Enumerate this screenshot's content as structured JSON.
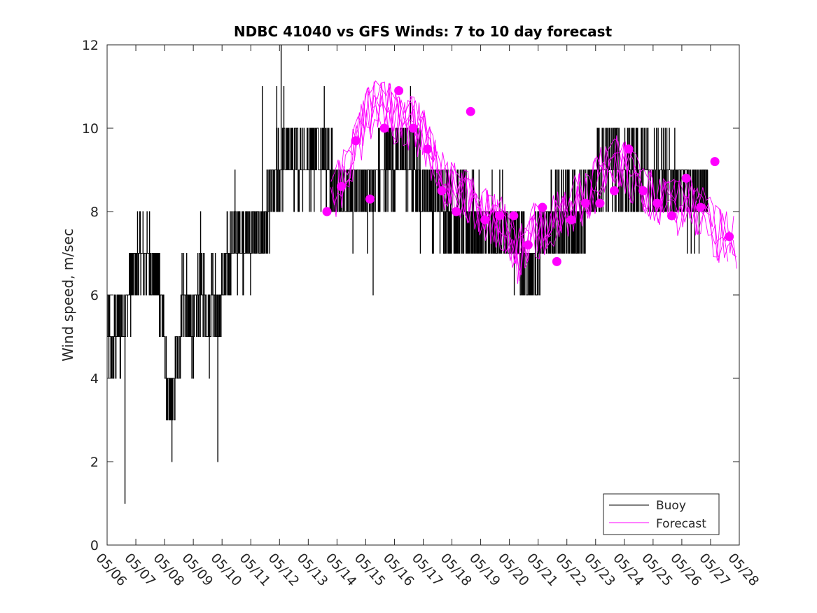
{
  "chart_data": {
    "type": "line",
    "title": "NDBC 41040 vs GFS Winds: 7 to 10 day forecast",
    "xlabel": "",
    "ylabel": "Wind speed, m/sec",
    "ylim": [
      0,
      12
    ],
    "yticks": [
      0,
      2,
      4,
      6,
      8,
      10,
      12
    ],
    "xlim_day": [
      0,
      22
    ],
    "xtick_labels": [
      "05/06",
      "05/07",
      "05/08",
      "05/09",
      "05/10",
      "05/11",
      "05/12",
      "05/13",
      "05/14",
      "05/15",
      "05/16",
      "05/17",
      "05/18",
      "05/19",
      "05/20",
      "05/21",
      "05/22",
      "05/23",
      "05/24",
      "05/25",
      "05/26",
      "05/27",
      "05/28"
    ],
    "grid": false,
    "legend_position": "bottom-right",
    "legend": [
      {
        "label": "Buoy",
        "color": "#000000"
      },
      {
        "label": "Forecast",
        "color": "#ff00ff"
      }
    ],
    "buoy": {
      "name": "Buoy",
      "color": "#000000",
      "anchors": [
        [
          0.0,
          5
        ],
        [
          0.2,
          4.8
        ],
        [
          0.45,
          5.2
        ],
        [
          0.65,
          5.6
        ],
        [
          0.8,
          6.2
        ],
        [
          1.0,
          6.6
        ],
        [
          1.2,
          7.0
        ],
        [
          1.5,
          6.8
        ],
        [
          1.7,
          6.4
        ],
        [
          1.9,
          5.8
        ],
        [
          2.05,
          4.2
        ],
        [
          2.15,
          3.2
        ],
        [
          2.3,
          3.5
        ],
        [
          2.45,
          4.3
        ],
        [
          2.65,
          6.0
        ],
        [
          2.8,
          5.6
        ],
        [
          3.0,
          5.0
        ],
        [
          3.2,
          6.2
        ],
        [
          3.4,
          6.0
        ],
        [
          3.55,
          5.2
        ],
        [
          3.65,
          6.4
        ],
        [
          3.8,
          5.6
        ],
        [
          3.9,
          5.4
        ],
        [
          4.05,
          6.4
        ],
        [
          4.3,
          7.0
        ],
        [
          4.6,
          7.4
        ],
        [
          5.0,
          7.3
        ],
        [
          5.2,
          7.4
        ],
        [
          5.4,
          7.6
        ],
        [
          5.6,
          8.0
        ],
        [
          5.8,
          8.6
        ],
        [
          6.0,
          9.0
        ],
        [
          6.2,
          9.5
        ],
        [
          6.5,
          9.2
        ],
        [
          7.0,
          9.3
        ],
        [
          7.5,
          9.4
        ],
        [
          7.8,
          8.8
        ],
        [
          8.2,
          8.5
        ],
        [
          8.6,
          8.4
        ],
        [
          9.0,
          8.6
        ],
        [
          9.4,
          8.7
        ],
        [
          9.8,
          9.2
        ],
        [
          10.2,
          9.3
        ],
        [
          10.6,
          9.0
        ],
        [
          11.0,
          8.6
        ],
        [
          11.4,
          8.3
        ],
        [
          11.8,
          8.1
        ],
        [
          12.2,
          7.9
        ],
        [
          12.6,
          7.8
        ],
        [
          13.0,
          7.6
        ],
        [
          13.4,
          7.7
        ],
        [
          13.8,
          7.6
        ],
        [
          14.2,
          7.3
        ],
        [
          14.6,
          6.8
        ],
        [
          14.8,
          6.6
        ],
        [
          15.0,
          7.2
        ],
        [
          15.3,
          7.6
        ],
        [
          15.6,
          7.9
        ],
        [
          15.9,
          8.0
        ],
        [
          16.2,
          7.7
        ],
        [
          16.5,
          7.8
        ],
        [
          16.8,
          8.5
        ],
        [
          17.1,
          8.8
        ],
        [
          17.4,
          9.0
        ],
        [
          17.7,
          9.1
        ],
        [
          18.0,
          8.9
        ],
        [
          18.3,
          9.0
        ],
        [
          18.6,
          9.1
        ],
        [
          18.9,
          9.0
        ],
        [
          19.2,
          8.9
        ],
        [
          19.5,
          8.8
        ],
        [
          19.8,
          8.6
        ],
        [
          20.1,
          8.4
        ],
        [
          20.5,
          8.3
        ],
        [
          20.9,
          8.3
        ]
      ],
      "extremes": [
        [
          0.62,
          1.0
        ],
        [
          0.3,
          4.0
        ],
        [
          1.05,
          8.0
        ],
        [
          1.8,
          7.0
        ],
        [
          2.25,
          2.0
        ],
        [
          2.6,
          7.0
        ],
        [
          3.25,
          8.0
        ],
        [
          3.85,
          2.0
        ],
        [
          4.1,
          7.0
        ],
        [
          4.45,
          9.0
        ],
        [
          4.9,
          7.0
        ],
        [
          5.4,
          11.0
        ],
        [
          5.55,
          7.0
        ],
        [
          5.9,
          11.0
        ],
        [
          6.05,
          12.0
        ],
        [
          6.15,
          11.0
        ],
        [
          6.5,
          8.0
        ],
        [
          7.3,
          10.0
        ],
        [
          7.55,
          11.0
        ],
        [
          7.8,
          10.0
        ],
        [
          8.3,
          8.0
        ],
        [
          8.55,
          7.0
        ],
        [
          9.05,
          7.0
        ],
        [
          9.25,
          6.0
        ],
        [
          9.7,
          10.0
        ],
        [
          10.05,
          10.0
        ],
        [
          10.55,
          11.0
        ],
        [
          10.9,
          7.0
        ],
        [
          11.7,
          7.0
        ],
        [
          12.5,
          7.0
        ],
        [
          13.3,
          7.0
        ],
        [
          14.0,
          7.0
        ],
        [
          14.5,
          6.0
        ],
        [
          14.9,
          6.0
        ],
        [
          15.05,
          6.0
        ],
        [
          15.3,
          8.0
        ],
        [
          16.0,
          7.0
        ],
        [
          16.5,
          7.0
        ],
        [
          16.8,
          9.0
        ],
        [
          17.4,
          10.0
        ],
        [
          17.9,
          9.0
        ],
        [
          18.3,
          10.0
        ],
        [
          18.8,
          10.0
        ],
        [
          19.3,
          8.0
        ],
        [
          19.8,
          9.0
        ],
        [
          20.2,
          9.0
        ],
        [
          20.6,
          7.0
        ]
      ]
    },
    "forecast_lines": {
      "name": "Forecast",
      "color": "#ff00ff",
      "start_day": 7.7,
      "end_day": 22.0,
      "anchors": [
        [
          7.7,
          8.3
        ],
        [
          8.2,
          8.8
        ],
        [
          8.6,
          9.4
        ],
        [
          9.1,
          10.4
        ],
        [
          9.6,
          10.6
        ],
        [
          10.1,
          10.2
        ],
        [
          10.6,
          10.1
        ],
        [
          11.0,
          9.9
        ],
        [
          11.5,
          9.0
        ],
        [
          11.9,
          8.5
        ],
        [
          12.4,
          8.5
        ],
        [
          12.9,
          8.0
        ],
        [
          13.4,
          7.8
        ],
        [
          13.9,
          7.6
        ],
        [
          14.3,
          6.9
        ],
        [
          14.8,
          7.5
        ],
        [
          15.3,
          7.6
        ],
        [
          15.8,
          7.9
        ],
        [
          16.3,
          8.2
        ],
        [
          16.8,
          8.4
        ],
        [
          17.3,
          9.0
        ],
        [
          17.8,
          9.2
        ],
        [
          18.3,
          8.8
        ],
        [
          18.8,
          8.4
        ],
        [
          19.3,
          8.2
        ],
        [
          19.8,
          8.1
        ],
        [
          20.3,
          8.2
        ],
        [
          20.8,
          7.9
        ],
        [
          21.3,
          7.4
        ],
        [
          22.0,
          7.2
        ]
      ]
    },
    "forecast_points": {
      "name": "Forecast",
      "color": "#ff00ff",
      "x_day": [
        7.65,
        8.15,
        8.65,
        9.15,
        9.65,
        10.15,
        10.65,
        11.15,
        11.65,
        12.15,
        12.65,
        13.15,
        13.65,
        14.15,
        14.65,
        15.15,
        15.65,
        16.15,
        16.65,
        17.15,
        17.65,
        18.15,
        18.65,
        19.15,
        19.65,
        20.15,
        20.65,
        21.15,
        21.65
      ],
      "values": [
        8.0,
        8.6,
        9.7,
        8.3,
        10.0,
        10.9,
        10.0,
        9.5,
        8.5,
        8.0,
        10.4,
        7.8,
        7.9,
        7.9,
        7.2,
        8.1,
        6.8,
        7.8,
        8.2,
        8.2,
        8.5,
        9.5,
        8.5,
        8.2,
        7.9,
        8.8,
        8.1,
        9.2,
        7.4
      ]
    }
  }
}
